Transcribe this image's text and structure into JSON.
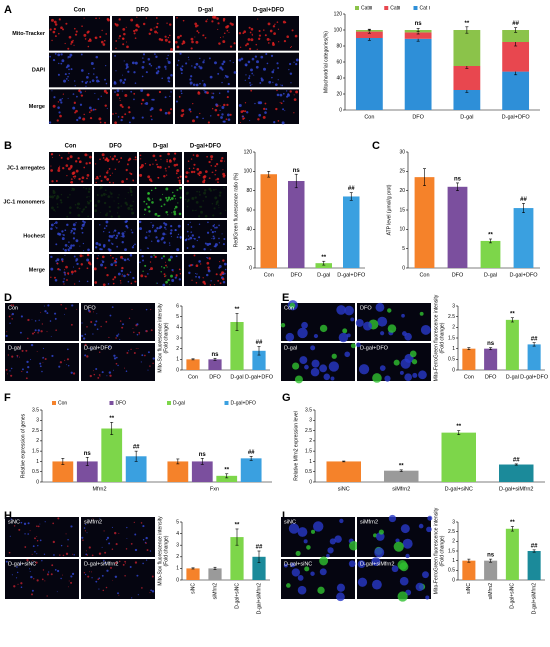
{
  "panels": [
    "A",
    "B",
    "C",
    "D",
    "E",
    "F",
    "G",
    "H",
    "I"
  ],
  "images": [
    {
      "columns": [
        "Con",
        "DFO",
        "D-gal",
        "D-gal+DFO"
      ],
      "rows": [
        "Mito-Tracker",
        "DAPI",
        "Merge"
      ]
    },
    {
      "columns": [
        "Con",
        "DFO",
        "D-gal",
        "D-gal+DFO"
      ],
      "rows": [
        "JC-1 arregates",
        "JC-1 monomers",
        "Hochest",
        "Merge"
      ]
    },
    {
      "tiles": [
        "Con",
        "DFO",
        "D-gal",
        "D-gal+DFO"
      ]
    },
    {
      "tiles": [
        "Con",
        "DFO",
        "D-gal",
        "D-gal+DFO"
      ]
    },
    {
      "tiles": [
        "siNC",
        "siMfrn2",
        "D-gal+siNC",
        "D-gal+siMfrn2"
      ]
    },
    {
      "tiles": [
        "siNC",
        "siMfrn2",
        "D-gal+siNC",
        "D-gal+siMfrn2"
      ]
    }
  ],
  "chart_data": [
    {
      "type": "bar",
      "stacked": true,
      "categories": [
        "Con",
        "DFO",
        "D-gal",
        "D-gal+DFO"
      ],
      "series": [
        {
          "name": "Cat Ⅰ",
          "color": "#2e8fd8",
          "values": [
            90,
            89,
            25,
            48
          ],
          "errors": [
            3,
            3,
            3,
            4
          ]
        },
        {
          "name": "CatⅡ",
          "color": "#e8474f",
          "values": [
            8,
            8,
            30,
            37
          ],
          "errors": [
            2,
            2,
            3,
            5
          ]
        },
        {
          "name": "CatⅢ",
          "color": "#8bc34a",
          "values": [
            2,
            3,
            45,
            15
          ],
          "errors": [
            1,
            2,
            4,
            3
          ]
        }
      ],
      "annotations": [
        null,
        "ns",
        "**",
        "##"
      ],
      "ylabel": [
        "Mitochondrial categories(%)"
      ],
      "ylim": [
        0,
        120
      ],
      "yticks": [
        0,
        20,
        40,
        60,
        80,
        100,
        120
      ],
      "legend": "top"
    },
    {
      "type": "bar",
      "categories": [
        "Con",
        "DFO",
        "D-gal",
        "D-gal+DFO"
      ],
      "colors": [
        "#f5822a",
        "#7b4f9e",
        "#7dd64a",
        "#3aa0e0"
      ],
      "values": [
        97,
        90,
        5,
        74
      ],
      "errors": [
        3,
        7,
        2,
        4
      ],
      "annotations": [
        null,
        "ns",
        "**",
        "##"
      ],
      "ylabel": [
        "Red/Green fluorescence ratio (%)"
      ],
      "ylim": [
        0,
        120
      ],
      "yticks": [
        0,
        20,
        40,
        60,
        80,
        100,
        120
      ]
    },
    {
      "type": "bar",
      "categories": [
        "Con",
        "DFO",
        "D-gal",
        "D-gal+DFO"
      ],
      "colors": [
        "#f5822a",
        "#7b4f9e",
        "#7dd64a",
        "#3aa0e0"
      ],
      "values": [
        23.5,
        21,
        7,
        15.5
      ],
      "errors": [
        2.2,
        1,
        0.5,
        1.2
      ],
      "annotations": [
        null,
        "ns",
        "**",
        "##"
      ],
      "ylabel": [
        "ATP level (μmol/g prot)"
      ],
      "ylim": [
        0,
        30
      ],
      "yticks": [
        0,
        5,
        10,
        15,
        20,
        25,
        30
      ]
    },
    {
      "type": "bar",
      "categories": [
        "Con",
        "DFO",
        "D-gal",
        "D-gal+DFO"
      ],
      "colors": [
        "#f5822a",
        "#7b4f9e",
        "#7dd64a",
        "#3aa0e0"
      ],
      "values": [
        1,
        1,
        4.5,
        1.8
      ],
      "errors": [
        0.05,
        0.1,
        0.8,
        0.4
      ],
      "annotations": [
        null,
        "ns",
        "**",
        "##"
      ],
      "ylabel": [
        "Mito-Sox fluorescence intensity",
        "(Fold change)"
      ],
      "ylim": [
        0,
        6
      ],
      "yticks": [
        0,
        1,
        2,
        3,
        4,
        5,
        6
      ]
    },
    {
      "type": "bar",
      "categories": [
        "Con",
        "DFO",
        "D-gal",
        "D-gal+DFO"
      ],
      "colors": [
        "#f5822a",
        "#7b4f9e",
        "#7dd64a",
        "#3aa0e0"
      ],
      "values": [
        1,
        1,
        2.35,
        1.2
      ],
      "errors": [
        0.05,
        0.05,
        0.1,
        0.08
      ],
      "annotations": [
        null,
        "ns",
        "**",
        "##"
      ],
      "ylabel": [
        "Mito-FerroGreen fluorescence intensity",
        "(Fold change)"
      ],
      "ylim": [
        0,
        3
      ],
      "yticks": [
        0,
        0.5,
        1,
        1.5,
        2,
        2.5,
        3
      ]
    },
    {
      "type": "bar",
      "grouped": true,
      "categories": [
        "Mfrn2",
        "Fxn"
      ],
      "series": [
        {
          "name": "Con",
          "color": "#f5822a",
          "values": [
            1,
            1
          ],
          "errors": [
            0.15,
            0.12
          ],
          "annotations": [
            null,
            null
          ]
        },
        {
          "name": "DFO",
          "color": "#7b4f9e",
          "values": [
            1,
            1
          ],
          "errors": [
            0.2,
            0.15
          ],
          "annotations": [
            "ns",
            "ns"
          ]
        },
        {
          "name": "D-gal",
          "color": "#7dd64a",
          "values": [
            2.6,
            0.3
          ],
          "errors": [
            0.3,
            0.1
          ],
          "annotations": [
            "**",
            "**"
          ]
        },
        {
          "name": "D-gal+DFO",
          "color": "#3aa0e0",
          "values": [
            1.25,
            1.15
          ],
          "errors": [
            0.25,
            0.1
          ],
          "annotations": [
            "##",
            "##"
          ]
        }
      ],
      "ylabel": [
        "Relative expression of genes"
      ],
      "ylim": [
        0,
        3.5
      ],
      "yticks": [
        0,
        0.5,
        1,
        1.5,
        2,
        2.5,
        3,
        3.5
      ],
      "legend": "top"
    },
    {
      "type": "bar",
      "categories": [
        "siNC",
        "siMfrn2",
        "D-gal+siNC",
        "D-gal+siMfrn2"
      ],
      "colors": [
        "#f5822a",
        "#9a9a9a",
        "#7dd64a",
        "#1b8a9a"
      ],
      "values": [
        1,
        0.55,
        2.4,
        0.85
      ],
      "errors": [
        0.02,
        0.04,
        0.1,
        0.03
      ],
      "annotations": [
        null,
        "**",
        "**",
        "##"
      ],
      "ylabel": [
        "Relative Mfrn2 expression level"
      ],
      "ylim": [
        0,
        3.5
      ],
      "yticks": [
        0,
        0.5,
        1,
        1.5,
        2,
        2.5,
        3,
        3.5
      ]
    },
    {
      "type": "bar",
      "categories": [
        "siNC",
        "siMfrn2",
        "D-gal+siNC",
        "D-gal+siMfrn2"
      ],
      "colors": [
        "#f5822a",
        "#9a9a9a",
        "#7dd64a",
        "#1b8a9a"
      ],
      "values": [
        1,
        1,
        3.7,
        2
      ],
      "errors": [
        0.05,
        0.1,
        0.7,
        0.5
      ],
      "annotations": [
        null,
        null,
        "**",
        "##"
      ],
      "ylabel": [
        "Mito-Sox fluorescence intensity",
        "(Fold change)"
      ],
      "ylim": [
        0,
        5
      ],
      "yticks": [
        0,
        1,
        2,
        3,
        4,
        5
      ],
      "rotate_xlabels": true
    },
    {
      "type": "bar",
      "categories": [
        "siNC",
        "siMfrn2",
        "D-gal+siNC",
        "D-gal+siMfrn2"
      ],
      "colors": [
        "#f5822a",
        "#9a9a9a",
        "#7dd64a",
        "#1b8a9a"
      ],
      "values": [
        1,
        1,
        2.65,
        1.5
      ],
      "errors": [
        0.08,
        0.08,
        0.12,
        0.06
      ],
      "annotations": [
        null,
        "ns",
        "**",
        "##"
      ],
      "ylabel": [
        "Mito-FerroGreen fluorescence intensity",
        "(Fold change)"
      ],
      "ylim": [
        0,
        3
      ],
      "yticks": [
        0,
        0.5,
        1,
        1.5,
        2,
        2.5,
        3
      ],
      "rotate_xlabels": true
    }
  ]
}
